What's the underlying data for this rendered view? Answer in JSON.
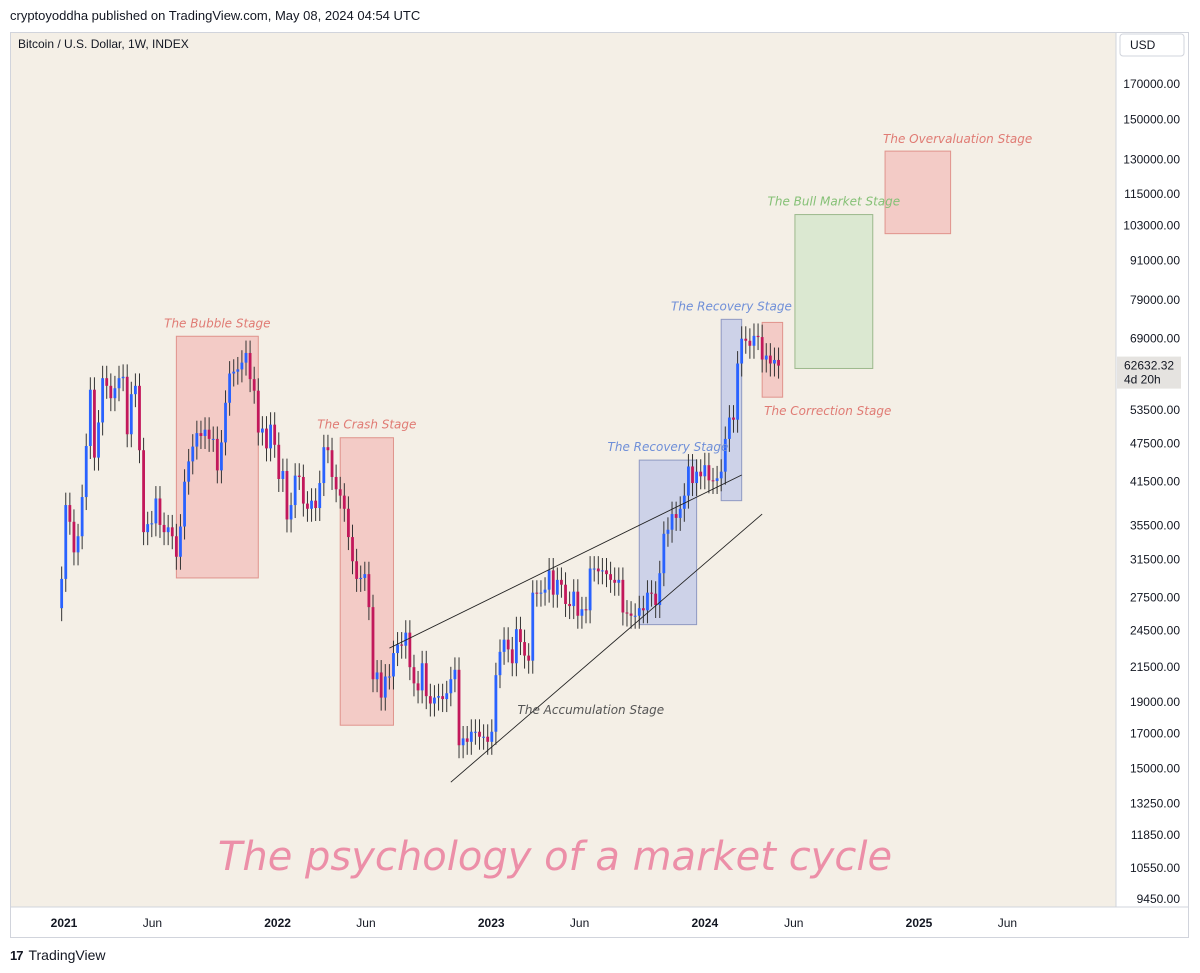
{
  "header": {
    "publisher": "cryptoyoddha published on TradingView.com, May 08, 2024 04:54 UTC"
  },
  "footer": {
    "brand": "TradingView",
    "logo_glyph": "17"
  },
  "colors": {
    "background": "#f4efe6",
    "up": "#2962ff",
    "down": "#c2185b",
    "red_zone": "#f2c4c0",
    "blue_zone": "#c5cde8",
    "green_zone": "#d6e6cd",
    "title": "#ec8fa8"
  },
  "chart_data": {
    "type": "candlestick",
    "symbol": "Bitcoin / U.S. Dollar, 1W, INDEX",
    "currency": "USD",
    "y_scale": "log",
    "ylim": [
      9000,
      200000
    ],
    "yticks": [
      170000,
      150000,
      130000,
      115000,
      103000,
      91000,
      79000,
      69000,
      53500,
      47500,
      41500,
      35500,
      31500,
      27500,
      24500,
      21500,
      19000,
      17000,
      15000,
      13250,
      11850,
      10550,
      9450
    ],
    "ytick_labels": [
      "170000.00",
      "150000.00",
      "130000.00",
      "115000.00",
      "103000.00",
      "91000.00",
      "79000.00",
      "69000.00",
      "53500.00",
      "47500.00",
      "41500.00",
      "35500.00",
      "31500.00",
      "27500.00",
      "24500.00",
      "21500.00",
      "19000.00",
      "17000.00",
      "15000.00",
      "13250.00",
      "11850.00",
      "10550.00",
      "9450.00"
    ],
    "xticks": [
      {
        "date": "2021-01-01",
        "label": "2021",
        "major": true
      },
      {
        "date": "2021-06-01",
        "label": "Jun",
        "major": false
      },
      {
        "date": "2022-01-01",
        "label": "2022",
        "major": true
      },
      {
        "date": "2022-06-01",
        "label": "Jun",
        "major": false
      },
      {
        "date": "2023-01-01",
        "label": "2023",
        "major": true
      },
      {
        "date": "2023-06-01",
        "label": "Jun",
        "major": false
      },
      {
        "date": "2024-01-01",
        "label": "2024",
        "major": true
      },
      {
        "date": "2024-06-01",
        "label": "Jun",
        "major": false
      },
      {
        "date": "2025-01-01",
        "label": "2025",
        "major": true
      },
      {
        "date": "2025-06-01",
        "label": "Jun",
        "major": false
      }
    ],
    "last_price": {
      "value": 62632.32,
      "label": "62632.32",
      "countdown": "4d 20h"
    },
    "title": "The psychology of a market cycle",
    "zones": [
      {
        "label": "The Bubble Stage",
        "x0": "2021-07-12",
        "x1": "2021-11-29",
        "y0": 29500,
        "y1": 69500,
        "color": "red"
      },
      {
        "label": "The Crash Stage",
        "x0": "2022-04-18",
        "x1": "2022-07-18",
        "y0": 17500,
        "y1": 48500,
        "color": "red"
      },
      {
        "label": "The Recovery Stage",
        "x0": "2023-09-11",
        "x1": "2023-12-18",
        "y0": 25000,
        "y1": 44800,
        "color": "blue"
      },
      {
        "label": "The Recovery Stage",
        "x0": "2024-01-29",
        "x1": "2024-03-04",
        "y0": 38800,
        "y1": 73800,
        "color": "blue"
      },
      {
        "label": "The Correction Stage",
        "x0": "2024-04-08",
        "x1": "2024-05-13",
        "y0": 56000,
        "y1": 73000,
        "color": "red"
      },
      {
        "label": "The Bull Market Stage",
        "x0": "2024-06-03",
        "x1": "2024-10-14",
        "y0": 62000,
        "y1": 107000,
        "color": "green"
      },
      {
        "label": "The Overvaluation Stage",
        "x0": "2024-11-04",
        "x1": "2025-02-24",
        "y0": 100000,
        "y1": 134000,
        "color": "red"
      }
    ],
    "trendlines": [
      {
        "x0": "2022-07-11",
        "y0": 23000,
        "x1": "2024-03-04",
        "y1": 42500
      },
      {
        "x0": "2022-10-24",
        "y0": 14300,
        "x1": "2024-04-08",
        "y1": 37000
      }
    ],
    "annotations": [
      {
        "text": "The Accumulation Stage",
        "x": "2023-02-15",
        "y": 18200
      }
    ],
    "weekly_close": [
      [
        "2020-12-21",
        26500
      ],
      [
        "2020-12-28",
        29400
      ],
      [
        "2021-01-04",
        38200
      ],
      [
        "2021-01-11",
        36000
      ],
      [
        "2021-01-18",
        32300
      ],
      [
        "2021-01-25",
        34200
      ],
      [
        "2021-02-01",
        39300
      ],
      [
        "2021-02-08",
        47100
      ],
      [
        "2021-02-15",
        57500
      ],
      [
        "2021-02-22",
        45200
      ],
      [
        "2021-03-01",
        51200
      ],
      [
        "2021-03-08",
        59900
      ],
      [
        "2021-03-15",
        58300
      ],
      [
        "2021-03-22",
        55800
      ],
      [
        "2021-03-29",
        57800
      ],
      [
        "2021-04-05",
        59900
      ],
      [
        "2021-04-12",
        60200
      ],
      [
        "2021-04-19",
        49100
      ],
      [
        "2021-04-26",
        56600
      ],
      [
        "2021-05-03",
        58300
      ],
      [
        "2021-05-10",
        46400
      ],
      [
        "2021-05-17",
        34700
      ],
      [
        "2021-05-24",
        35700
      ],
      [
        "2021-05-31",
        35800
      ],
      [
        "2021-06-07",
        39100
      ],
      [
        "2021-06-14",
        35600
      ],
      [
        "2021-06-21",
        34700
      ],
      [
        "2021-06-28",
        35300
      ],
      [
        "2021-07-05",
        34200
      ],
      [
        "2021-07-12",
        31800
      ],
      [
        "2021-07-19",
        35400
      ],
      [
        "2021-07-26",
        41500
      ],
      [
        "2021-08-02",
        44600
      ],
      [
        "2021-08-09",
        47000
      ],
      [
        "2021-08-16",
        49300
      ],
      [
        "2021-08-23",
        48800
      ],
      [
        "2021-08-30",
        49900
      ],
      [
        "2021-09-06",
        48300
      ],
      [
        "2021-09-13",
        48300
      ],
      [
        "2021-09-20",
        43200
      ],
      [
        "2021-09-27",
        47700
      ],
      [
        "2021-10-04",
        54900
      ],
      [
        "2021-10-11",
        60900
      ],
      [
        "2021-10-18",
        61300
      ],
      [
        "2021-10-25",
        61800
      ],
      [
        "2021-11-01",
        63300
      ],
      [
        "2021-11-08",
        65500
      ],
      [
        "2021-11-15",
        59700
      ],
      [
        "2021-11-22",
        57300
      ],
      [
        "2021-11-29",
        49400
      ],
      [
        "2021-12-06",
        50100
      ],
      [
        "2021-12-13",
        46700
      ],
      [
        "2021-12-20",
        50800
      ],
      [
        "2021-12-27",
        47300
      ],
      [
        "2022-01-03",
        41900
      ],
      [
        "2022-01-10",
        43100
      ],
      [
        "2022-01-17",
        36300
      ],
      [
        "2022-01-24",
        38200
      ],
      [
        "2022-01-31",
        42400
      ],
      [
        "2022-02-07",
        42200
      ],
      [
        "2022-02-14",
        38400
      ],
      [
        "2022-02-21",
        37700
      ],
      [
        "2022-02-28",
        38800
      ],
      [
        "2022-03-07",
        37800
      ],
      [
        "2022-03-14",
        41300
      ],
      [
        "2022-03-21",
        46900
      ],
      [
        "2022-03-28",
        46400
      ],
      [
        "2022-04-04",
        42200
      ],
      [
        "2022-04-11",
        40400
      ],
      [
        "2022-04-18",
        39500
      ],
      [
        "2022-04-25",
        37700
      ],
      [
        "2022-05-02",
        34100
      ],
      [
        "2022-05-09",
        31300
      ],
      [
        "2022-05-16",
        29400
      ],
      [
        "2022-05-23",
        29500
      ],
      [
        "2022-05-30",
        29900
      ],
      [
        "2022-06-06",
        26600
      ],
      [
        "2022-06-13",
        20600
      ],
      [
        "2022-06-20",
        21100
      ],
      [
        "2022-06-27",
        19300
      ],
      [
        "2022-07-04",
        20800
      ],
      [
        "2022-07-11",
        20800
      ],
      [
        "2022-07-18",
        22600
      ],
      [
        "2022-07-25",
        23300
      ],
      [
        "2022-08-01",
        23200
      ],
      [
        "2022-08-08",
        24300
      ],
      [
        "2022-08-15",
        21500
      ],
      [
        "2022-08-22",
        20300
      ],
      [
        "2022-08-29",
        19800
      ],
      [
        "2022-09-05",
        21800
      ],
      [
        "2022-09-12",
        19400
      ],
      [
        "2022-09-19",
        18900
      ],
      [
        "2022-09-26",
        19300
      ],
      [
        "2022-10-03",
        19400
      ],
      [
        "2022-10-10",
        19200
      ],
      [
        "2022-10-17",
        19600
      ],
      [
        "2022-10-24",
        20600
      ],
      [
        "2022-10-31",
        21300
      ],
      [
        "2022-11-07",
        16300
      ],
      [
        "2022-11-14",
        16700
      ],
      [
        "2022-11-21",
        16500
      ],
      [
        "2022-11-28",
        17100
      ],
      [
        "2022-12-05",
        17100
      ],
      [
        "2022-12-12",
        16800
      ],
      [
        "2022-12-19",
        16800
      ],
      [
        "2022-12-26",
        16500
      ],
      [
        "2023-01-02",
        17100
      ],
      [
        "2023-01-09",
        20900
      ],
      [
        "2023-01-16",
        22700
      ],
      [
        "2023-01-23",
        23700
      ],
      [
        "2023-01-30",
        22900
      ],
      [
        "2023-02-06",
        21800
      ],
      [
        "2023-02-13",
        24600
      ],
      [
        "2023-02-20",
        23500
      ],
      [
        "2023-02-27",
        22400
      ],
      [
        "2023-03-06",
        22000
      ],
      [
        "2023-03-13",
        28000
      ],
      [
        "2023-03-20",
        27900
      ],
      [
        "2023-03-27",
        28000
      ],
      [
        "2023-04-03",
        28300
      ],
      [
        "2023-04-10",
        30300
      ],
      [
        "2023-04-17",
        27800
      ],
      [
        "2023-04-24",
        29300
      ],
      [
        "2023-05-01",
        28800
      ],
      [
        "2023-05-08",
        26900
      ],
      [
        "2023-05-15",
        26700
      ],
      [
        "2023-05-22",
        28100
      ],
      [
        "2023-05-29",
        25800
      ],
      [
        "2023-06-05",
        26400
      ],
      [
        "2023-06-12",
        26300
      ],
      [
        "2023-06-19",
        30500
      ],
      [
        "2023-06-26",
        30500
      ],
      [
        "2023-07-03",
        30200
      ],
      [
        "2023-07-10",
        30300
      ],
      [
        "2023-07-17",
        29900
      ],
      [
        "2023-07-24",
        29300
      ],
      [
        "2023-07-31",
        29000
      ],
      [
        "2023-08-07",
        29300
      ],
      [
        "2023-08-14",
        26100
      ],
      [
        "2023-08-21",
        26000
      ],
      [
        "2023-08-28",
        25800
      ],
      [
        "2023-09-04",
        25800
      ],
      [
        "2023-09-11",
        26500
      ],
      [
        "2023-09-18",
        26300
      ],
      [
        "2023-09-25",
        28000
      ],
      [
        "2023-10-02",
        27900
      ],
      [
        "2023-10-09",
        26800
      ],
      [
        "2023-10-16",
        30000
      ],
      [
        "2023-10-23",
        34500
      ],
      [
        "2023-10-30",
        35000
      ],
      [
        "2023-11-06",
        37000
      ],
      [
        "2023-11-13",
        36500
      ],
      [
        "2023-11-20",
        37700
      ],
      [
        "2023-11-27",
        39500
      ],
      [
        "2023-12-04",
        43800
      ],
      [
        "2023-12-11",
        41300
      ],
      [
        "2023-12-18",
        43000
      ],
      [
        "2023-12-25",
        42300
      ],
      [
        "2024-01-01",
        44000
      ],
      [
        "2024-01-08",
        41700
      ],
      [
        "2024-01-15",
        41600
      ],
      [
        "2024-01-22",
        42000
      ],
      [
        "2024-01-29",
        43000
      ],
      [
        "2024-02-05",
        48300
      ],
      [
        "2024-02-12",
        52100
      ],
      [
        "2024-02-19",
        51700
      ],
      [
        "2024-02-26",
        63100
      ],
      [
        "2024-03-04",
        68900
      ],
      [
        "2024-03-11",
        68400
      ],
      [
        "2024-03-18",
        67200
      ],
      [
        "2024-03-25",
        69600
      ],
      [
        "2024-04-01",
        69300
      ],
      [
        "2024-04-08",
        64000
      ],
      [
        "2024-04-15",
        64900
      ],
      [
        "2024-04-22",
        63100
      ],
      [
        "2024-04-29",
        63900
      ],
      [
        "2024-05-06",
        62632
      ]
    ]
  }
}
